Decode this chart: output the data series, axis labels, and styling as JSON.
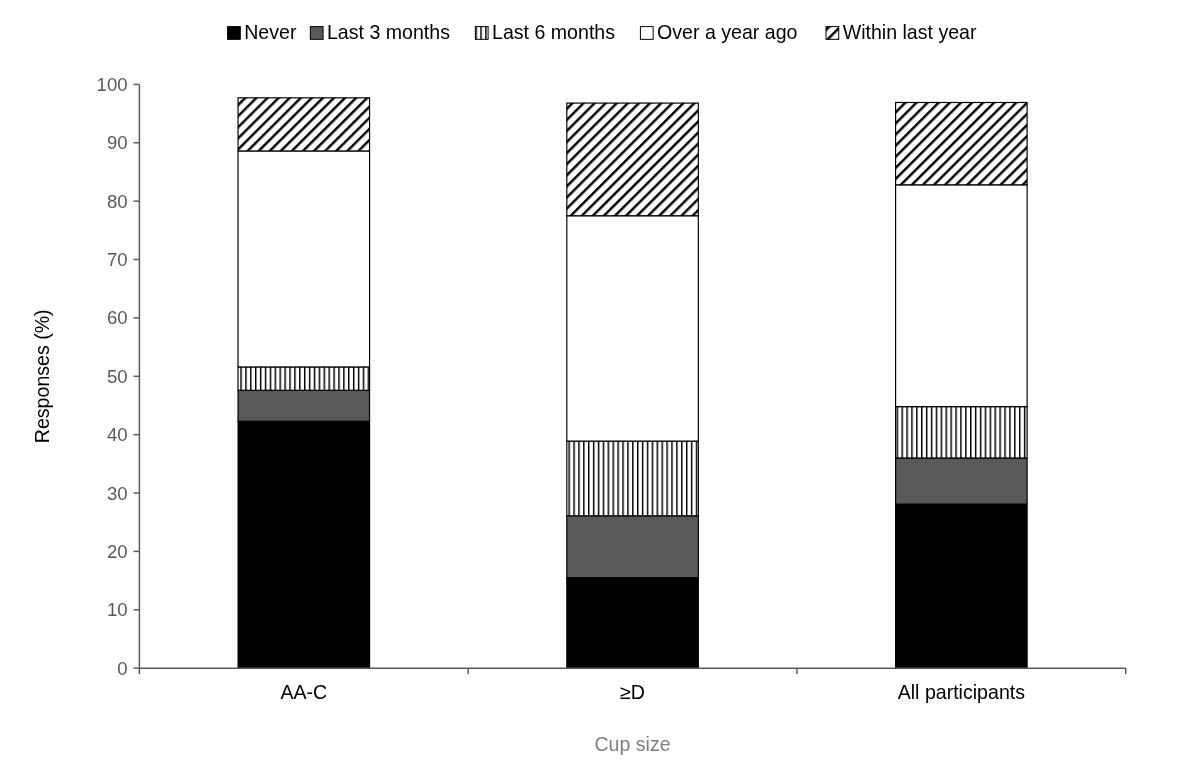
{
  "chart_data": {
    "type": "bar",
    "stacked": true,
    "xlabel": "Cup size",
    "ylabel": "Responses (%)",
    "categories": [
      "AA-C",
      "≥D",
      "All participants"
    ],
    "series": [
      {
        "name": "Never",
        "color": "#000000",
        "values": [
          42.3,
          15.5,
          28.1
        ]
      },
      {
        "name": "Last 3 months",
        "color": "#595959",
        "values": [
          5.3,
          10.6,
          7.9
        ]
      },
      {
        "name": "Last 6 months",
        "color": "#000000",
        "values": [
          4.0,
          12.8,
          8.8
        ]
      },
      {
        "name": "Over a year ago",
        "color": "#ffffff",
        "values": [
          37.0,
          38.6,
          38.0
        ]
      },
      {
        "name": "Within last year",
        "color": "#000000",
        "values": [
          9.1,
          19.3,
          14.1
        ]
      }
    ],
    "ylim": [
      0,
      100
    ],
    "yticks": [
      0,
      10,
      20,
      30,
      40,
      50,
      60,
      70,
      80,
      90,
      100
    ],
    "grid": false,
    "legend": "top"
  }
}
